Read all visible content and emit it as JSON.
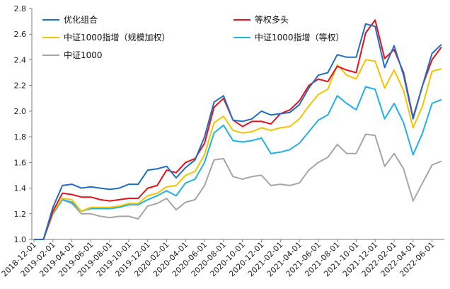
{
  "chart_data": {
    "type": "line",
    "title": "",
    "xlabel": "",
    "ylabel": "",
    "ylim": [
      1.0,
      2.8
    ],
    "yticks": [
      "1.0",
      "1.2",
      "1.4",
      "1.6",
      "1.8",
      "2.0",
      "2.2",
      "2.4",
      "2.6",
      "2.8"
    ],
    "grid": false,
    "legend_position": "top-left",
    "x_tick_labels": [
      "2018-12-01",
      "2019-02-01",
      "2019-04-01",
      "2019-06-01",
      "2019-08-01",
      "2019-10-01",
      "2019-12-01",
      "2020-02-01",
      "2020-04-01",
      "2020-06-01",
      "2020-08-01",
      "2020-10-01",
      "2020-12-01",
      "2021-02-01",
      "2021-04-01",
      "2021-06-01",
      "2021-08-01",
      "2021-10-01",
      "2021-12-01",
      "2022-02-01",
      "2022-04-01",
      "2022-06-01"
    ],
    "categories": [
      "2018-12",
      "2019-01",
      "2019-02",
      "2019-03",
      "2019-04",
      "2019-05",
      "2019-06",
      "2019-07",
      "2019-08",
      "2019-09",
      "2019-10",
      "2019-11",
      "2019-12",
      "2020-01",
      "2020-02",
      "2020-03",
      "2020-04",
      "2020-05",
      "2020-06",
      "2020-07",
      "2020-08",
      "2020-09",
      "2020-10",
      "2020-11",
      "2020-12",
      "2021-01",
      "2021-02",
      "2021-03",
      "2021-04",
      "2021-05",
      "2021-06",
      "2021-07",
      "2021-08",
      "2021-09",
      "2021-10",
      "2021-11",
      "2021-12",
      "2022-01",
      "2022-02",
      "2022-03",
      "2022-04",
      "2022-05",
      "2022-06",
      "2022-07"
    ],
    "series": [
      {
        "name": "优化组合",
        "color": "#1f6fc5",
        "values": [
          1.0,
          1.0,
          1.25,
          1.42,
          1.43,
          1.4,
          1.41,
          1.4,
          1.39,
          1.4,
          1.43,
          1.43,
          1.54,
          1.55,
          1.57,
          1.48,
          1.56,
          1.62,
          1.8,
          2.07,
          2.12,
          1.93,
          1.92,
          1.94,
          2.0,
          1.97,
          1.98,
          1.99,
          2.05,
          2.18,
          2.28,
          2.3,
          2.44,
          2.42,
          2.42,
          2.68,
          2.66,
          2.34,
          2.51,
          2.28,
          1.94,
          2.2,
          2.45,
          2.52
        ]
      },
      {
        "name": "等权多头",
        "color": "#e8111b",
        "values": [
          1.0,
          1.0,
          1.22,
          1.36,
          1.35,
          1.33,
          1.33,
          1.31,
          1.3,
          1.31,
          1.32,
          1.32,
          1.4,
          1.42,
          1.54,
          1.52,
          1.6,
          1.63,
          1.75,
          2.03,
          2.1,
          1.93,
          1.88,
          1.92,
          1.92,
          1.9,
          1.98,
          2.01,
          2.08,
          2.2,
          2.25,
          2.23,
          2.35,
          2.32,
          2.3,
          2.61,
          2.71,
          2.41,
          2.48,
          2.3,
          1.95,
          2.2,
          2.4,
          2.5
        ]
      },
      {
        "name": "中证1000指增（规模加权）",
        "color": "#f5c400",
        "values": [
          1.0,
          1.0,
          1.21,
          1.32,
          1.31,
          1.22,
          1.25,
          1.25,
          1.25,
          1.26,
          1.28,
          1.28,
          1.34,
          1.36,
          1.41,
          1.42,
          1.5,
          1.53,
          1.66,
          1.91,
          1.96,
          1.85,
          1.83,
          1.84,
          1.87,
          1.85,
          1.87,
          1.88,
          1.94,
          2.04,
          2.13,
          2.17,
          2.36,
          2.28,
          2.25,
          2.4,
          2.39,
          2.18,
          2.32,
          2.16,
          1.87,
          2.04,
          2.31,
          2.33
        ]
      },
      {
        "name": "中证1000指增（等权）",
        "color": "#21b0e8",
        "values": [
          1.0,
          1.0,
          1.2,
          1.31,
          1.29,
          1.22,
          1.24,
          1.24,
          1.24,
          1.25,
          1.27,
          1.27,
          1.31,
          1.34,
          1.38,
          1.34,
          1.44,
          1.47,
          1.6,
          1.83,
          1.89,
          1.77,
          1.76,
          1.77,
          1.79,
          1.67,
          1.68,
          1.7,
          1.75,
          1.84,
          1.93,
          1.97,
          2.12,
          2.06,
          2.01,
          2.19,
          2.17,
          1.94,
          2.06,
          1.91,
          1.66,
          1.83,
          2.06,
          2.09
        ]
      },
      {
        "name": "中证1000",
        "color": "#a6a6a6",
        "values": [
          1.0,
          1.0,
          1.2,
          1.31,
          1.28,
          1.2,
          1.2,
          1.18,
          1.17,
          1.18,
          1.18,
          1.16,
          1.26,
          1.28,
          1.32,
          1.23,
          1.29,
          1.31,
          1.42,
          1.62,
          1.63,
          1.49,
          1.47,
          1.49,
          1.5,
          1.42,
          1.43,
          1.42,
          1.44,
          1.54,
          1.6,
          1.64,
          1.74,
          1.67,
          1.67,
          1.82,
          1.81,
          1.57,
          1.67,
          1.55,
          1.3,
          1.44,
          1.58,
          1.61
        ]
      }
    ]
  }
}
